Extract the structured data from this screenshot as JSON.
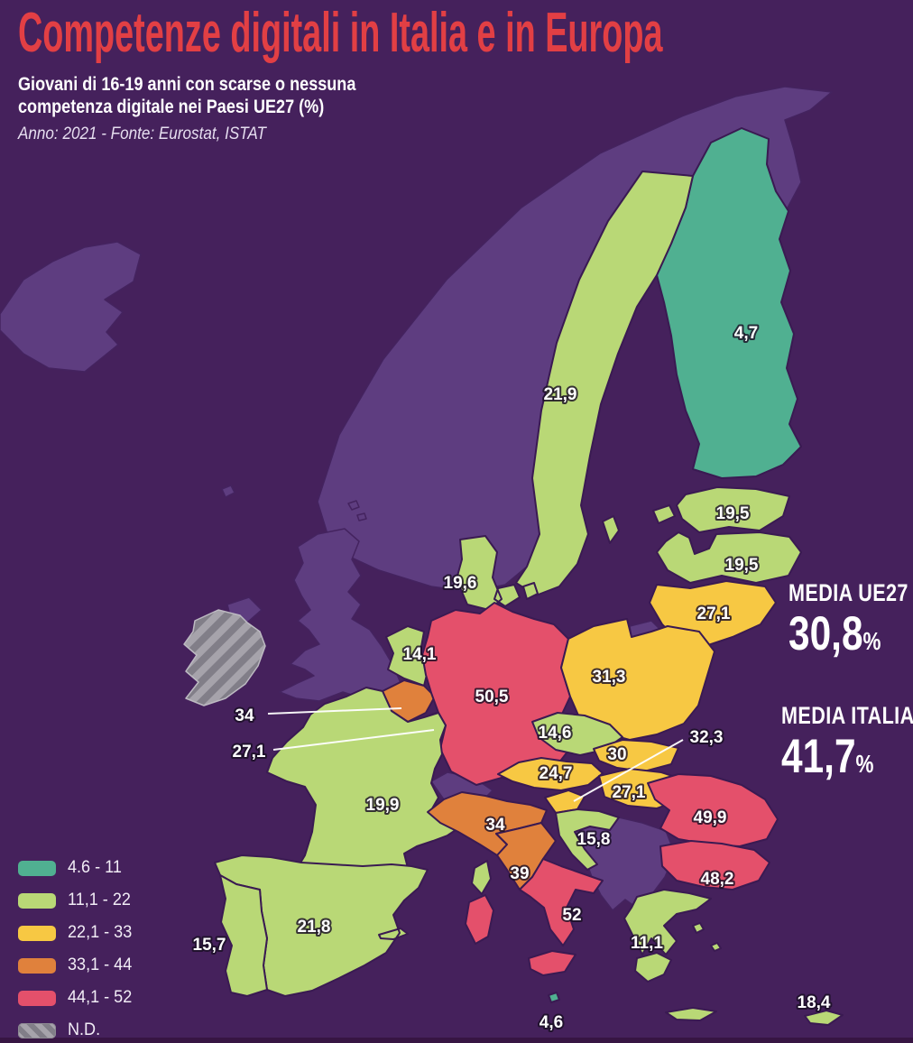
{
  "header": {
    "title": "Competenze digitali in Italia e in Europa",
    "subtitle_line1": "Giovani di 16-19 anni con scarse o nessuna",
    "subtitle_line2": "competenza digitale nei Paesi UE27 (%)",
    "source": "Anno: 2021 - Fonte: Eurostat, ISTAT"
  },
  "colors": {
    "background": "#45215c",
    "non_eu_land": "#5e3d80",
    "border": "#3a1a52",
    "title_red": "#e23f44"
  },
  "legend": {
    "items": [
      {
        "label": "4.6 - 11",
        "color": "#50b091"
      },
      {
        "label": "11,1 - 22",
        "color": "#b9d876"
      },
      {
        "label": "22,1 - 33",
        "color": "#f7c843"
      },
      {
        "label": "33,1 - 44",
        "color": "#e0813c"
      },
      {
        "label": "44,1 - 52",
        "color": "#e4506b"
      },
      {
        "label": "N.D.",
        "color": "hatch"
      }
    ]
  },
  "stats": {
    "eu": {
      "label": "MEDIA UE27",
      "value": "30,8",
      "unit": "%"
    },
    "italy": {
      "label": "MEDIA ITALIA",
      "value": "41,7",
      "unit": "%"
    }
  },
  "chart_data": {
    "type": "heatmap",
    "subtype": "choropleth-map",
    "geography": "Europa / Paesi UE27",
    "title": "Competenze digitali in Italia e in Europa",
    "metric": "Giovani di 16-19 anni con scarse o nessuna competenza digitale (%)",
    "year": "2021",
    "source": "Eurostat, ISTAT",
    "bands": [
      "4.6 - 11",
      "11,1 - 22",
      "22,1 - 33",
      "33,1 - 44",
      "44,1 - 52",
      "N.D."
    ],
    "regions": [
      {
        "id": "finland",
        "name": "Finlandia",
        "value": 4.7,
        "label": "4,7",
        "band": 0
      },
      {
        "id": "sweden",
        "name": "Svezia",
        "value": 21.9,
        "label": "21,9",
        "band": 1
      },
      {
        "id": "estonia",
        "name": "Estonia",
        "value": 19.5,
        "label": "19,5",
        "band": 1
      },
      {
        "id": "latvia",
        "name": "Lettonia",
        "value": 19.5,
        "label": "19,5",
        "band": 1
      },
      {
        "id": "lithuania",
        "name": "Lituania",
        "value": 27.1,
        "label": "27,1",
        "band": 2
      },
      {
        "id": "denmark",
        "name": "Danimarca",
        "value": 19.6,
        "label": "19,6",
        "band": 1
      },
      {
        "id": "netherlands",
        "name": "Paesi Bassi",
        "value": 14.1,
        "label": "14,1",
        "band": 1
      },
      {
        "id": "belgium",
        "name": "Belgio",
        "value": 34,
        "label": "34",
        "band": 3
      },
      {
        "id": "luxembourg",
        "name": "Lussemburgo",
        "value": 27.1,
        "label": "27,1",
        "band": 2
      },
      {
        "id": "germany",
        "name": "Germania",
        "value": 50.5,
        "label": "50,5",
        "band": 4
      },
      {
        "id": "poland",
        "name": "Polonia",
        "value": 31.3,
        "label": "31,3",
        "band": 2
      },
      {
        "id": "czechia",
        "name": "Cechia",
        "value": 14.6,
        "label": "14,6",
        "band": 1
      },
      {
        "id": "slovakia",
        "name": "Slovacchia",
        "value": 30,
        "label": "30",
        "band": 2
      },
      {
        "id": "austria",
        "name": "Austria",
        "value": 24.7,
        "label": "24,7",
        "band": 2
      },
      {
        "id": "hungary",
        "name": "Ungheria",
        "value": 27.1,
        "label": "27,1",
        "band": 2
      },
      {
        "id": "slovenia",
        "name": "Slovenia",
        "value": 32.3,
        "label": "32,3",
        "band": 2
      },
      {
        "id": "croatia",
        "name": "Croazia",
        "value": 15.8,
        "label": "15,8",
        "band": 1
      },
      {
        "id": "romania",
        "name": "Romania",
        "value": 49.9,
        "label": "49,9",
        "band": 4
      },
      {
        "id": "bulgaria",
        "name": "Bulgaria",
        "value": 48.2,
        "label": "48,2",
        "band": 4
      },
      {
        "id": "greece",
        "name": "Grecia",
        "value": 11.1,
        "label": "11,1",
        "band": 1
      },
      {
        "id": "france",
        "name": "Francia",
        "value": 19.9,
        "label": "19,9",
        "band": 1
      },
      {
        "id": "italy_north",
        "name": "Italia - Nord",
        "value": 34,
        "label": "34",
        "band": 3
      },
      {
        "id": "italy_center",
        "name": "Italia - Centro",
        "value": 39,
        "label": "39",
        "band": 3
      },
      {
        "id": "italy_south",
        "name": "Italia - Sud",
        "value": 52,
        "label": "52",
        "band": 4
      },
      {
        "id": "spain",
        "name": "Spagna",
        "value": 21.8,
        "label": "21,8",
        "band": 1
      },
      {
        "id": "portugal",
        "name": "Portogallo",
        "value": 15.7,
        "label": "15,7",
        "band": 1
      },
      {
        "id": "malta",
        "name": "Malta",
        "value": 4.6,
        "label": "4,6",
        "band": 0
      },
      {
        "id": "cyprus",
        "name": "Cipro",
        "value": 18.4,
        "label": "18,4",
        "band": 1
      },
      {
        "id": "ireland",
        "name": "Irlanda",
        "value": null,
        "label": "N.D.",
        "band": "nd"
      }
    ],
    "averages": [
      {
        "label": "MEDIA UE27",
        "value": 30.8,
        "unit": "%"
      },
      {
        "label": "MEDIA ITALIA",
        "value": 41.7,
        "unit": "%"
      }
    ],
    "legend_position": "bottom-left",
    "grid": false
  }
}
